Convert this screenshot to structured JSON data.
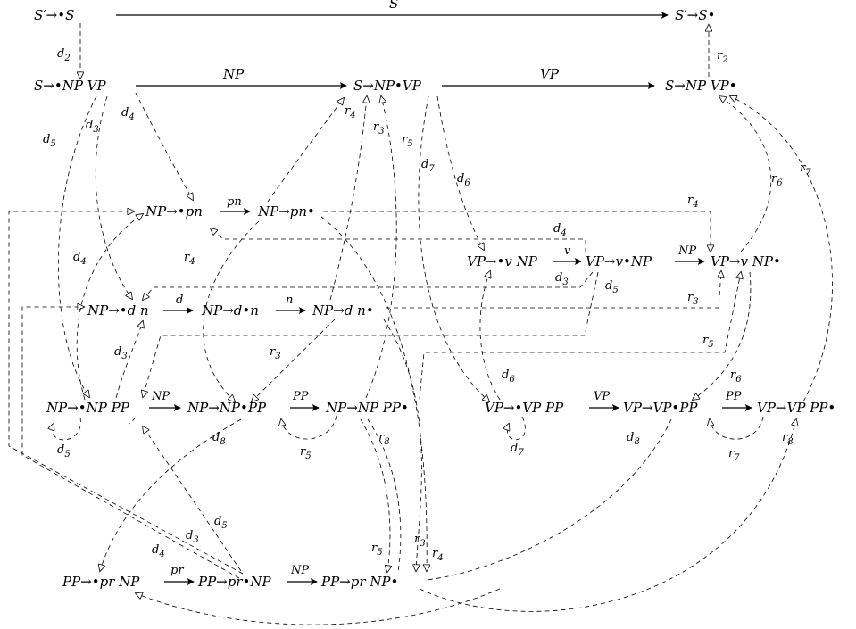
{
  "nodes": {
    "sp0": "S′→•S",
    "sp1": "S′→S•",
    "s0": "S→•NP  VP",
    "s1": "S→NP•VP",
    "s2": "S→NP  VP•",
    "pn0": "NP→•pn",
    "pn1": "NP→pn•",
    "vp0": "VP→•v  NP",
    "vp1": "VP→v•NP",
    "vp2": "VP→v  NP•",
    "dn0": "NP→•d n",
    "dn1": "NP→d•n",
    "dn2": "NP→d n•",
    "np0": "NP→•NP  PP",
    "np1": "NP→NP•PP",
    "np2": "NP→NP  PP•",
    "vpp0": "VP→•VP  PP",
    "vpp1": "VP→VP•PP",
    "vpp2": "VP→VP  PP•",
    "pp0": "PP→•pr  NP",
    "pp1": "PP→pr•NP",
    "pp2": "PP→pr  NP•"
  },
  "shift_labels": {
    "S": "S",
    "NP": "NP",
    "VP": "VP",
    "pn": "pn",
    "v": "v",
    "d": "d",
    "n": "n",
    "PP": "PP",
    "pr": "pr"
  },
  "edge_labels": {
    "d2": "d2",
    "d3": "d3",
    "d4": "d4",
    "d5": "d5",
    "d6": "d6",
    "d7": "d7",
    "d8": "d8",
    "r2": "r2",
    "r3": "r3",
    "r4": "r4",
    "r5": "r5",
    "r6": "r6",
    "r7": "r7",
    "r8": "r8"
  }
}
